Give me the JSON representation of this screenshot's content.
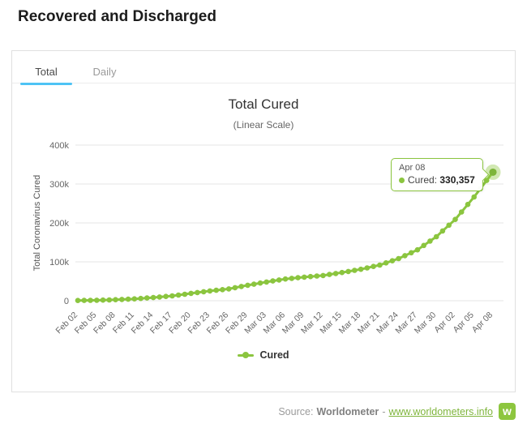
{
  "page": {
    "title": "Recovered and Discharged"
  },
  "tabs": [
    {
      "label": "Total",
      "active": true
    },
    {
      "label": "Daily",
      "active": false
    }
  ],
  "chart_data": {
    "type": "line",
    "title": "Total Cured",
    "subtitle": "(Linear Scale)",
    "ylabel": "Total Coronavirus Cured",
    "xlabel": "",
    "ylim": [
      0,
      400000
    ],
    "ytick_values": [
      0,
      100000,
      200000,
      300000,
      400000
    ],
    "ytick_labels": [
      "0",
      "100k",
      "200k",
      "300k",
      "400k"
    ],
    "grid": "horizontal",
    "legend_position": "bottom",
    "marker": "circle",
    "point_interval_days": 1,
    "categories": [
      "Feb 02",
      "Feb 05",
      "Feb 08",
      "Feb 11",
      "Feb 14",
      "Feb 17",
      "Feb 20",
      "Feb 23",
      "Feb 26",
      "Feb 29",
      "Mar 03",
      "Mar 06",
      "Mar 09",
      "Mar 12",
      "Mar 15",
      "Mar 18",
      "Mar 21",
      "Mar 24",
      "Mar 27",
      "Mar 30",
      "Apr 02",
      "Apr 05",
      "Apr 08"
    ],
    "series": [
      {
        "name": "Cured",
        "color": "#8bc53f",
        "values": [
          631,
          1292,
          2616,
          4740,
          8101,
          12583,
          18862,
          25227,
          30320,
          39782,
          48228,
          55866,
          60695,
          64830,
          72528,
          80840,
          91676,
          108333,
          130915,
          164566,
          208949,
          266732,
          330357
        ]
      }
    ]
  },
  "tooltip": {
    "date": "Apr 08",
    "label": "Cured:",
    "value": "330,357"
  },
  "legend": {
    "label": "Cured"
  },
  "footer": {
    "prefix": "Source:",
    "name": "Worldometer",
    "dash": "-",
    "link_text": "www.worldometers.info",
    "logo_letter": "w"
  },
  "colors": {
    "series_green": "#8bc53f",
    "logo_green": "#8dc63f",
    "tab_underline_blue": "#4ec3f5",
    "grid_gray": "#e6e6e6"
  }
}
